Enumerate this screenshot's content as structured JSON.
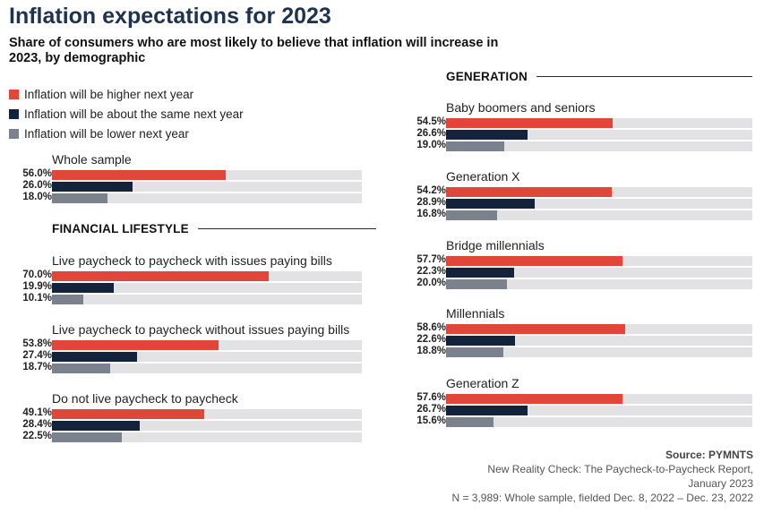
{
  "title": "Inflation expectations for 2023",
  "subtitle": "Share of consumers who are most likely to believe that inflation will increase in 2023, by demographic",
  "colors": {
    "higher": "#e0473a",
    "same": "#13233b",
    "lower": "#7b828d",
    "track": "#e2e2e4"
  },
  "legend": [
    {
      "label": "Inflation will be higher next year",
      "color": "#e0473a"
    },
    {
      "label": "Inflation will be about the same next year",
      "color": "#13233b"
    },
    {
      "label": "Inflation will be lower next year",
      "color": "#7b828d"
    }
  ],
  "sections": {
    "financial_lifestyle": "FINANCIAL LIFESTYLE",
    "generation": "GENERATION"
  },
  "source": {
    "label": "Source: PYMNTS",
    "line1": "New Reality Check: The Paycheck-to-Paycheck Report,",
    "line2": "January 2023",
    "line3": "N = 3,989: Whole sample, fielded Dec. 8, 2022 – Dec. 23, 2022"
  },
  "chart_data": {
    "type": "bar",
    "orientation": "horizontal",
    "xlim": [
      0,
      100
    ],
    "unit": "%",
    "series_names": [
      "Inflation will be higher next year",
      "Inflation will be about the same next year",
      "Inflation will be lower next year"
    ],
    "groups": [
      {
        "label": "Whole sample",
        "section": "",
        "values": [
          56.0,
          26.0,
          18.0
        ],
        "value_labels": [
          "56.0%",
          "26.0%",
          "18.0%"
        ]
      },
      {
        "label": "Live paycheck to paycheck with issues paying bills",
        "section": "FINANCIAL LIFESTYLE",
        "values": [
          70.0,
          19.9,
          10.1
        ],
        "value_labels": [
          "70.0%",
          "19.9%",
          "10.1%"
        ]
      },
      {
        "label": "Live paycheck to paycheck without issues paying bills",
        "section": "FINANCIAL LIFESTYLE",
        "values": [
          53.8,
          27.4,
          18.7
        ],
        "value_labels": [
          "53.8%",
          "27.4%",
          "18.7%"
        ]
      },
      {
        "label": "Do not live paycheck to paycheck",
        "section": "FINANCIAL LIFESTYLE",
        "values": [
          49.1,
          28.4,
          22.5
        ],
        "value_labels": [
          "49.1%",
          "28.4%",
          "22.5%"
        ]
      },
      {
        "label": "Baby boomers and seniors",
        "section": "GENERATION",
        "values": [
          54.5,
          26.6,
          19.0
        ],
        "value_labels": [
          "54.5%",
          "26.6%",
          "19.0%"
        ]
      },
      {
        "label": "Generation X",
        "section": "GENERATION",
        "values": [
          54.2,
          28.9,
          16.8
        ],
        "value_labels": [
          "54.2%",
          "28.9%",
          "16.8%"
        ]
      },
      {
        "label": "Bridge millennials",
        "section": "GENERATION",
        "values": [
          57.7,
          22.3,
          20.0
        ],
        "value_labels": [
          "57.7%",
          "22.3%",
          "20.0%"
        ]
      },
      {
        "label": "Millennials",
        "section": "GENERATION",
        "values": [
          58.6,
          22.6,
          18.8
        ],
        "value_labels": [
          "58.6%",
          "22.6%",
          "18.8%"
        ]
      },
      {
        "label": "Generation Z",
        "section": "GENERATION",
        "values": [
          57.6,
          26.7,
          15.6
        ],
        "value_labels": [
          "57.6%",
          "26.7%",
          "15.6%"
        ]
      }
    ]
  }
}
